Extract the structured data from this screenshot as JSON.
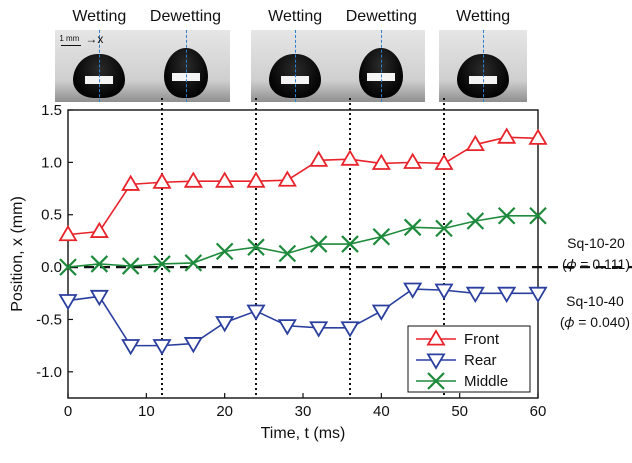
{
  "frames": [
    {
      "label": "Wetting",
      "state": "wet"
    },
    {
      "label": "Dewetting",
      "state": "dewet"
    },
    {
      "label": "Wetting",
      "state": "wet"
    },
    {
      "label": "Dewetting",
      "state": "dewet"
    },
    {
      "label": "Wetting",
      "state": "wet"
    }
  ],
  "inset": {
    "scale_text": "1 mm",
    "axis_label": "x"
  },
  "side_labels": [
    {
      "name": "Sq-10-20",
      "phi": "(𝜙 = 0.111)"
    },
    {
      "name": "Sq-10-40",
      "phi": "(𝜙 = 0.040)"
    }
  ],
  "chart_data": {
    "type": "line",
    "xlabel": "Time, t (ms)",
    "ylabel": "Position, x (mm)",
    "xlim": [
      0,
      60
    ],
    "ylim": [
      -1.25,
      1.5
    ],
    "xticks": [
      0,
      10,
      20,
      30,
      40,
      50,
      60
    ],
    "yticks": [
      -1.0,
      -0.5,
      0.0,
      0.5,
      1.0,
      1.5
    ],
    "ytick_labels": [
      "-1.0",
      "-0.5",
      "0.0",
      "0.5",
      "1.0",
      "1.5"
    ],
    "vlines": [
      12,
      24,
      36,
      48
    ],
    "hline": 0,
    "legend_position": "bottom-right",
    "x": [
      0,
      4,
      8,
      12,
      16,
      20,
      24,
      28,
      32,
      36,
      40,
      44,
      48,
      52,
      56,
      60
    ],
    "series": [
      {
        "name": "Front",
        "color": "#e8242b",
        "marker": "triangle-up",
        "values": [
          0.31,
          0.34,
          0.79,
          0.81,
          0.82,
          0.82,
          0.82,
          0.83,
          1.02,
          1.03,
          0.99,
          1.0,
          0.99,
          1.17,
          1.24,
          1.23
        ]
      },
      {
        "name": "Rear",
        "color": "#2b3f9e",
        "marker": "triangle-down",
        "values": [
          -0.32,
          -0.28,
          -0.75,
          -0.75,
          -0.73,
          -0.53,
          -0.42,
          -0.56,
          -0.58,
          -0.58,
          -0.42,
          -0.21,
          -0.22,
          -0.25,
          -0.25,
          -0.25
        ]
      },
      {
        "name": "Middle",
        "color": "#1e8a3c",
        "marker": "x",
        "values": [
          0.0,
          0.03,
          0.01,
          0.03,
          0.04,
          0.15,
          0.19,
          0.13,
          0.22,
          0.22,
          0.29,
          0.38,
          0.37,
          0.44,
          0.49,
          0.49
        ]
      }
    ]
  }
}
